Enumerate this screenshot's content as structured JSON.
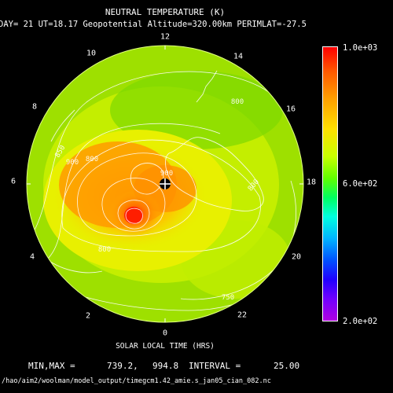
{
  "header": {
    "title": "NEUTRAL TEMPERATURE (K)",
    "subtitle": "DAY= 21 UT=18.17 Geopotential Altitude=320.00km PERIMLAT=-27.5"
  },
  "plot": {
    "local_time_labels": [
      "12",
      "14",
      "16",
      "18",
      "20",
      "22",
      "0",
      "2",
      "4",
      "6",
      "8",
      "10"
    ],
    "contour_labels": [
      "800",
      "850",
      "900",
      "800",
      "800",
      "900",
      "750",
      "800"
    ],
    "xlabel": "SOLAR LOCAL TIME (HRS)",
    "marker_icon": "crosshair-circle-icon"
  },
  "colorbar": {
    "max_label": "1.0e+03",
    "mid_label": "6.0e+02",
    "min_label": "2.0e+02",
    "colors": [
      "#ff0000",
      "#ffa000",
      "#ffe000",
      "#60ff00",
      "#00ffe0",
      "#0050ff",
      "#b000e0"
    ]
  },
  "footer": {
    "minmax_label": "MIN,MAX =",
    "min_value": "739.2,",
    "max_value": "994.8",
    "interval_label": "INTERVAL =",
    "interval_value": "25.00",
    "file_path": "/hao/aim2/woolman/model_output/timegcm1.42_amie.s_jan05_cian_082.nc"
  }
}
